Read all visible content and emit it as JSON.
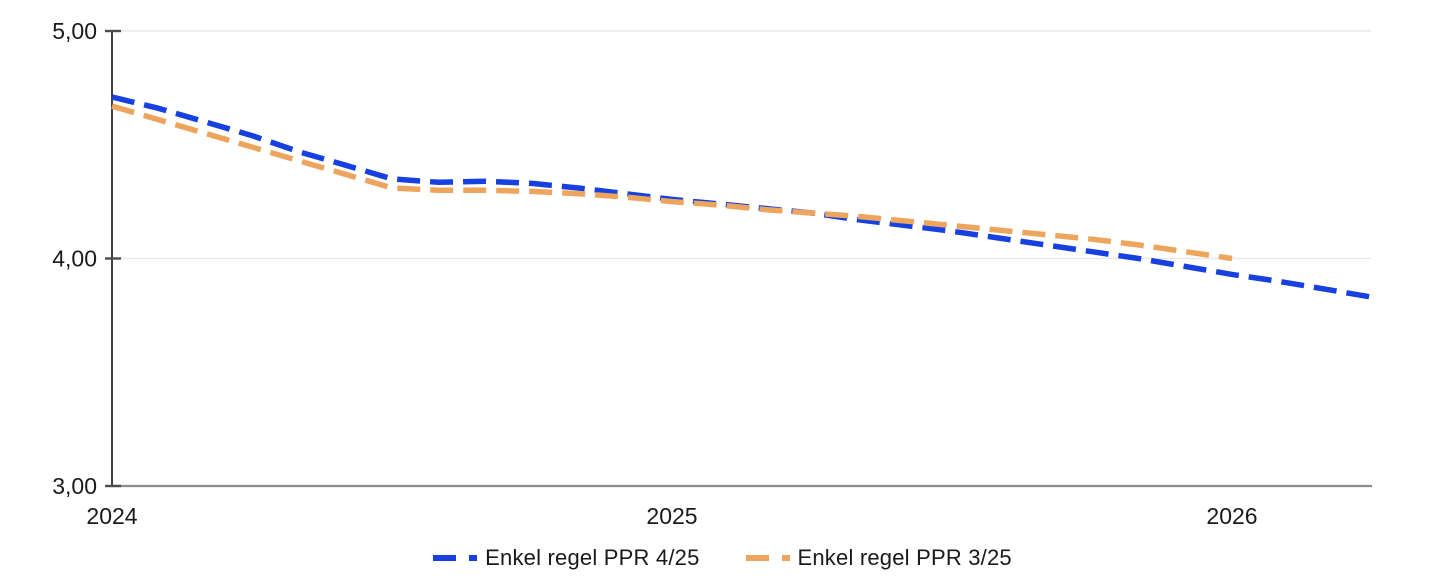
{
  "chart_data": {
    "type": "line",
    "title": "",
    "xlabel": "",
    "ylabel": "",
    "ylim": [
      3.0,
      5.0
    ],
    "xlim": [
      2024.0,
      2026.25
    ],
    "grid": "horizontal",
    "legend_position": "bottom-center",
    "background_color": "#ffffff",
    "gridline_color": "#e9e9e9",
    "axis_color": "#2b2b2b",
    "baseline_color": "#8c8c8c",
    "tick_text_color": "#1a1a1a",
    "y_ticks": [
      {
        "value": 5.0,
        "label": "5,00"
      },
      {
        "value": 4.0,
        "label": "4,00"
      },
      {
        "value": 3.0,
        "label": "3,00"
      }
    ],
    "x_ticks": [
      {
        "value": 2024,
        "label": "2024"
      },
      {
        "value": 2025,
        "label": "2025"
      },
      {
        "value": 2026,
        "label": "2026"
      }
    ],
    "series": [
      {
        "name": "Enkel regel PPR 4/25",
        "color": "#1740e0",
        "style": "dashed",
        "x": [
          2024.0,
          2024.083,
          2024.167,
          2024.25,
          2024.333,
          2024.417,
          2024.5,
          2024.583,
          2024.667,
          2024.75,
          2024.833,
          2024.917,
          2025.0,
          2025.083,
          2025.167,
          2025.25,
          2025.333,
          2025.417,
          2025.5,
          2025.583,
          2025.667,
          2025.75,
          2025.833,
          2025.917,
          2026.0,
          2026.083,
          2026.167,
          2026.25
        ],
        "values": [
          4.71,
          4.66,
          4.6,
          4.54,
          4.47,
          4.41,
          4.35,
          4.335,
          4.34,
          4.33,
          4.31,
          4.285,
          4.26,
          4.24,
          4.22,
          4.2,
          4.17,
          4.145,
          4.12,
          4.09,
          4.06,
          4.03,
          4.0,
          3.965,
          3.93,
          3.9,
          3.865,
          3.83
        ]
      },
      {
        "name": "Enkel regel PPR 3/25",
        "color": "#eda55e",
        "style": "dashed",
        "x": [
          2024.0,
          2024.083,
          2024.167,
          2024.25,
          2024.333,
          2024.417,
          2024.5,
          2024.583,
          2024.667,
          2024.75,
          2024.833,
          2024.917,
          2025.0,
          2025.083,
          2025.167,
          2025.25,
          2025.333,
          2025.417,
          2025.5,
          2025.583,
          2025.667,
          2025.75,
          2025.833,
          2025.917,
          2026.0
        ],
        "values": [
          4.67,
          4.61,
          4.55,
          4.49,
          4.43,
          4.37,
          4.31,
          4.3,
          4.3,
          4.295,
          4.285,
          4.27,
          4.25,
          4.235,
          4.215,
          4.2,
          4.185,
          4.165,
          4.145,
          4.125,
          4.105,
          4.085,
          4.06,
          4.03,
          4.0
        ]
      }
    ]
  }
}
